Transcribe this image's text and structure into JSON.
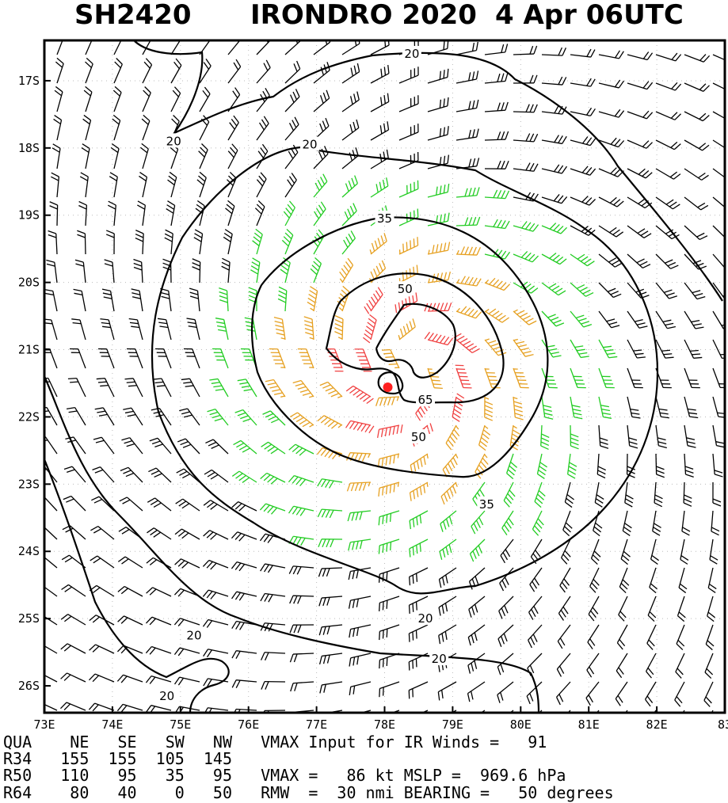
{
  "title": {
    "storm_id": "SH2420",
    "storm_name": "IRONDRO 2020",
    "datetime": "4 Apr 06UTC"
  },
  "chart_data": {
    "type": "wind-analysis-map",
    "lon_range": [
      73,
      83
    ],
    "lat_range": [
      -26.4,
      -16.4
    ],
    "lon_ticks": [
      "73E",
      "74E",
      "75E",
      "76E",
      "77E",
      "78E",
      "79E",
      "80E",
      "81E",
      "82E",
      "83"
    ],
    "lat_ticks": [
      "17S",
      "18S",
      "19S",
      "20S",
      "21S",
      "22S",
      "23S",
      "24S",
      "25S",
      "26S"
    ],
    "center": {
      "lon": 78.0,
      "lat": -21.5
    },
    "contour_levels_kt": [
      20,
      35,
      50,
      65
    ],
    "contour_labels": [
      {
        "text": "20",
        "lon": 78.4,
        "lat": -16.6
      },
      {
        "text": "20",
        "lon": 74.9,
        "lat": -17.9
      },
      {
        "text": "20",
        "lon": 76.9,
        "lat": -17.95
      },
      {
        "text": "35",
        "lon": 78.0,
        "lat": -19.05
      },
      {
        "text": "50",
        "lon": 78.3,
        "lat": -20.1
      },
      {
        "text": "65",
        "lon": 78.6,
        "lat": -21.75
      },
      {
        "text": "50",
        "lon": 78.5,
        "lat": -22.3
      },
      {
        "text": "35",
        "lon": 79.5,
        "lat": -23.3
      },
      {
        "text": "20",
        "lon": 78.6,
        "lat": -25.0
      },
      {
        "text": "20",
        "lon": 75.2,
        "lat": -25.25
      },
      {
        "text": "20",
        "lon": 78.8,
        "lat": -25.6
      },
      {
        "text": "20",
        "lon": 74.8,
        "lat": -26.15
      }
    ],
    "barb_colors": {
      "below34": "#000000",
      "gale": "#22cc22",
      "storm": "#e6a020",
      "hurricane": "#f08040",
      "strong": "#f04040"
    },
    "center_marker_color": "#ff2020"
  },
  "footer": {
    "row1": "QUA    NE   SE   SW   NW   VMAX Input for IR Winds =   91",
    "row2": "R34   155  155  105  145",
    "row3": "R50   110   95   35   95   VMAX =   86 kt MSLP =  969.6 hPa",
    "row4": "R64    80   40    0   50   RMW  =  30 nmi BEARING =   50 degrees"
  }
}
